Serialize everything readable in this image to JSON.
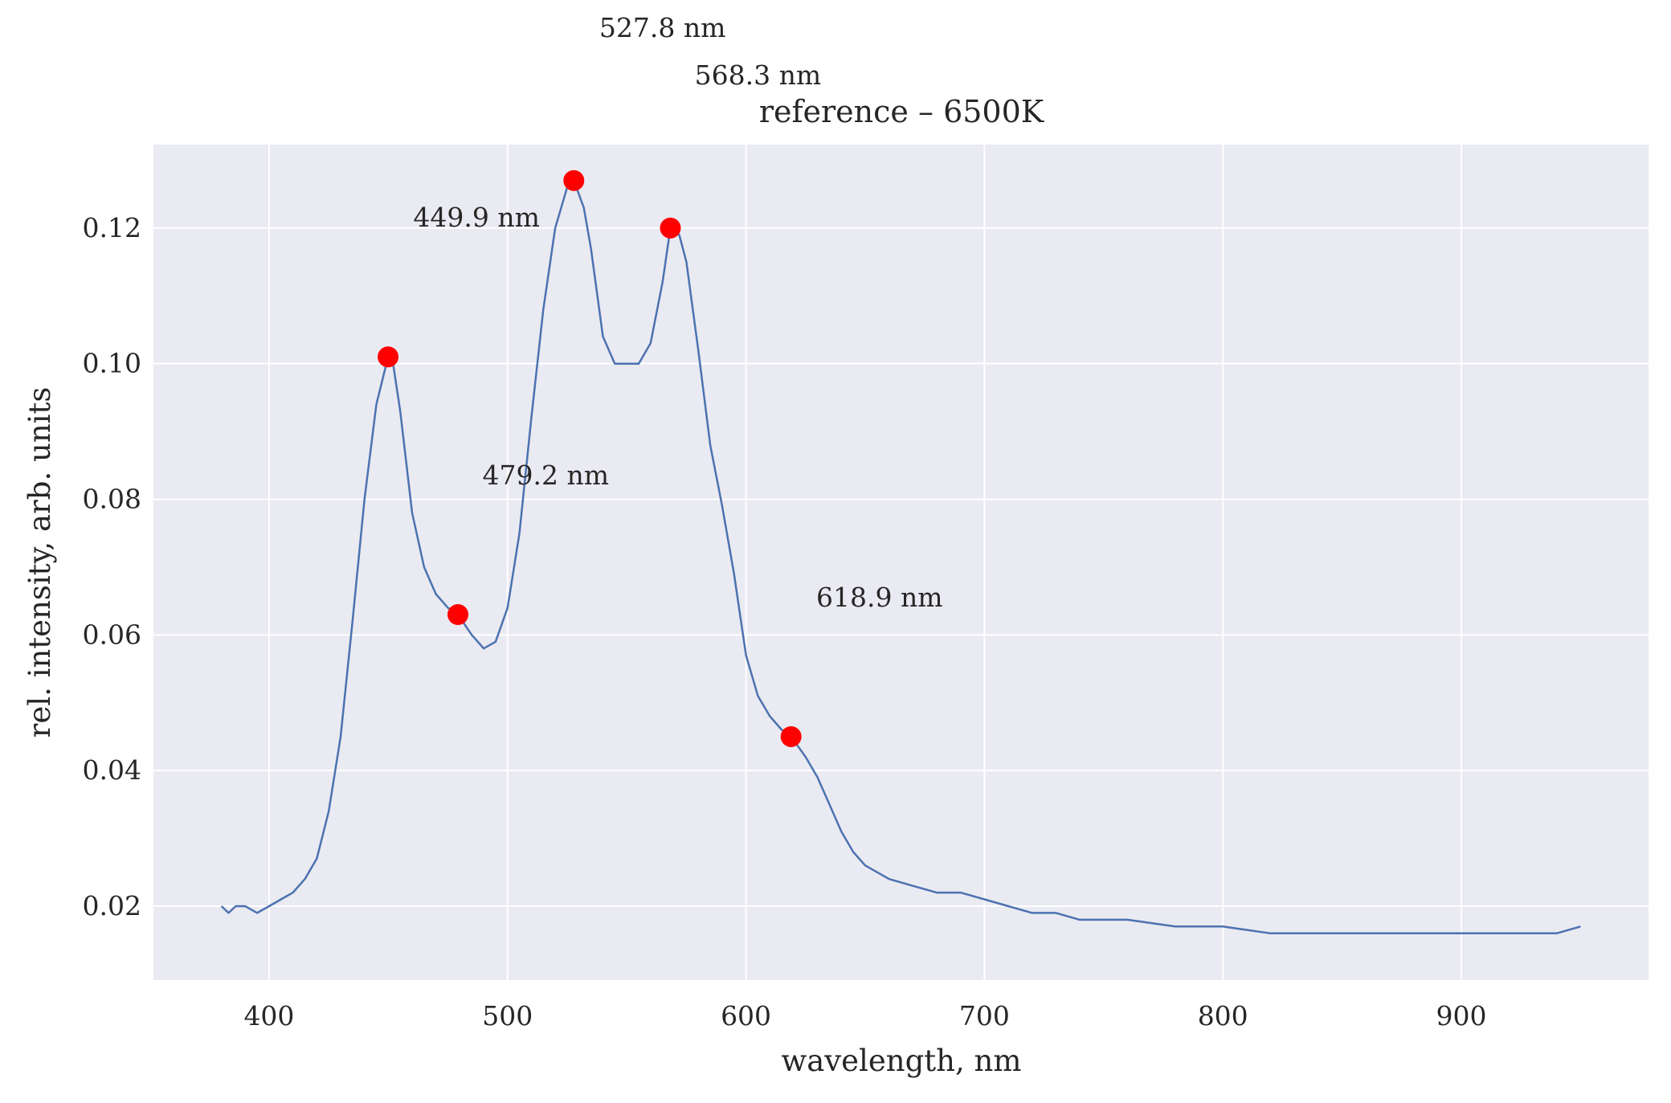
{
  "chart_data": {
    "type": "line",
    "title": "reference – 6500K",
    "xlabel": "wavelength, nm",
    "ylabel": "rel. intensity, arb. units",
    "xlim": [
      351.5,
      978.5
    ],
    "ylim": [
      0.0091,
      0.1323
    ],
    "xticks": [
      400,
      500,
      600,
      700,
      800,
      900
    ],
    "yticks": [
      0.02,
      0.04,
      0.06,
      0.08,
      0.1,
      0.12
    ],
    "xtick_labels": [
      "400",
      "500",
      "600",
      "700",
      "800",
      "900"
    ],
    "ytick_labels": [
      "0.02",
      "0.04",
      "0.06",
      "0.08",
      "0.10",
      "0.12"
    ],
    "grid": true,
    "colors": {
      "background": "#eaeaf2",
      "grid": "#ffffff",
      "line": "#4c72b0",
      "marker": "#ff0000",
      "text": "#262626"
    },
    "series": [
      {
        "x": [
          380,
          383,
          386,
          390,
          395,
          400,
          405,
          410,
          415,
          420,
          425,
          430,
          435,
          440,
          445,
          449.9,
          452,
          455,
          460,
          465,
          470,
          475,
          479.2,
          485,
          490,
          495,
          500,
          505,
          510,
          515,
          520,
          525,
          527.8,
          532,
          535,
          540,
          545,
          550,
          555,
          560,
          565,
          568.3,
          572,
          575,
          580,
          585,
          590,
          595,
          600,
          605,
          610,
          615,
          618.9,
          625,
          630,
          635,
          640,
          645,
          650,
          660,
          670,
          680,
          690,
          700,
          710,
          720,
          730,
          740,
          750,
          760,
          780,
          800,
          820,
          840,
          860,
          880,
          900,
          920,
          940,
          950
        ],
        "y": [
          0.02,
          0.019,
          0.02,
          0.02,
          0.019,
          0.02,
          0.021,
          0.022,
          0.024,
          0.027,
          0.034,
          0.045,
          0.062,
          0.08,
          0.094,
          0.101,
          0.1,
          0.093,
          0.078,
          0.07,
          0.066,
          0.064,
          0.063,
          0.06,
          0.058,
          0.059,
          0.064,
          0.075,
          0.092,
          0.108,
          0.12,
          0.126,
          0.127,
          0.123,
          0.117,
          0.104,
          0.1,
          0.1,
          0.1,
          0.103,
          0.112,
          0.12,
          0.119,
          0.115,
          0.102,
          0.088,
          0.079,
          0.069,
          0.057,
          0.051,
          0.048,
          0.046,
          0.045,
          0.042,
          0.039,
          0.035,
          0.031,
          0.028,
          0.026,
          0.024,
          0.023,
          0.022,
          0.022,
          0.021,
          0.02,
          0.019,
          0.019,
          0.018,
          0.018,
          0.018,
          0.017,
          0.017,
          0.016,
          0.016,
          0.016,
          0.016,
          0.016,
          0.016,
          0.016,
          0.017
        ]
      }
    ],
    "peaks": [
      {
        "x": 449.9,
        "y": 0.101,
        "label": "449.9 nm",
        "label_x": 487,
        "label_y": 0.1215
      },
      {
        "x": 479.2,
        "y": 0.063,
        "label": "479.2 nm",
        "label_x": 516,
        "label_y": 0.0835
      },
      {
        "x": 527.8,
        "y": 0.127,
        "label": "527.8 nm",
        "label_x": 565,
        "label_y": 0.1495
      },
      {
        "x": 568.3,
        "y": 0.12,
        "label": "568.3 nm",
        "label_x": 605,
        "label_y": 0.1425
      },
      {
        "x": 618.9,
        "y": 0.045,
        "label": "618.9 nm",
        "label_x": 656,
        "label_y": 0.0655
      }
    ]
  }
}
